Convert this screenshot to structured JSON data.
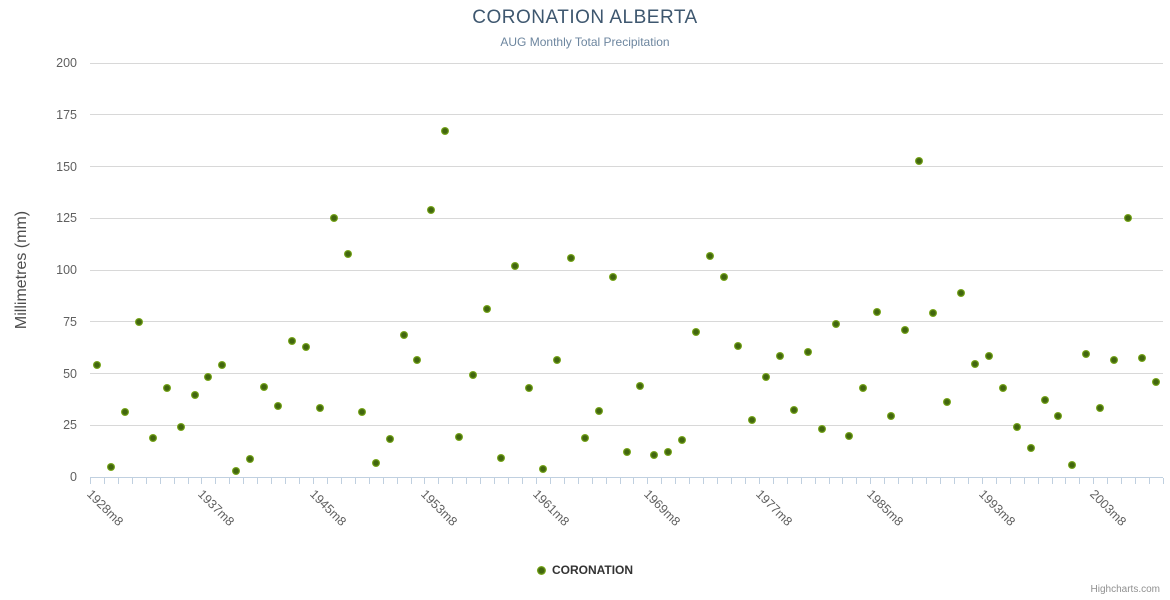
{
  "chart": {
    "title": "CORONATION ALBERTA",
    "subtitle": "AUG Monthly Total Precipitation",
    "credits": "Highcharts.com"
  },
  "legend": {
    "series_label": "CORONATION"
  },
  "colors": {
    "title": "#3E576F",
    "subtitle": "#6D869F",
    "axis_label": "#606060",
    "axis_title": "#4D4D4D",
    "grid": "#D8D8D8",
    "axis_line": "#C0D0E0",
    "marker_rim": "#8BBC21",
    "marker_core": "#41660E",
    "legend_text": "#333333",
    "credits": "#909090"
  },
  "chart_data": {
    "type": "scatter",
    "title": "CORONATION ALBERTA",
    "subtitle": "AUG Monthly Total Precipitation",
    "xlabel": "",
    "ylabel": "Millimetres (mm)",
    "ylim": [
      0,
      200
    ],
    "y_tick_interval": 25,
    "y_tick_labels": [
      "0",
      "25",
      "50",
      "75",
      "100",
      "125",
      "150",
      "175",
      "200"
    ],
    "grid": true,
    "legend_position": "bottom-center",
    "series_name": "CORONATION",
    "point_count": 77,
    "x_tick_labels": [
      {
        "index": 0,
        "label": "1928m8"
      },
      {
        "index": 8,
        "label": "1937m8"
      },
      {
        "index": 16,
        "label": "1945m8"
      },
      {
        "index": 24,
        "label": "1953m8"
      },
      {
        "index": 32,
        "label": "1961m8"
      },
      {
        "index": 40,
        "label": "1969m8"
      },
      {
        "index": 48,
        "label": "1977m8"
      },
      {
        "index": 56,
        "label": "1985m8"
      },
      {
        "index": 64,
        "label": "1993m8"
      },
      {
        "index": 72,
        "label": "2003m8"
      }
    ],
    "values": [
      54,
      5,
      31.5,
      75,
      19,
      43,
      24,
      39.5,
      48.5,
      54,
      3,
      8.5,
      43.5,
      34.5,
      65.5,
      63,
      33.5,
      125,
      107.5,
      31.5,
      7,
      18.5,
      68.5,
      56.5,
      129,
      167,
      19.5,
      49.5,
      81,
      9,
      102,
      43,
      4,
      56.5,
      106,
      19,
      32,
      96.5,
      12,
      44,
      10.5,
      12,
      18,
      70,
      107,
      96.5,
      63.5,
      27.5,
      48.5,
      58.5,
      32.5,
      60.5,
      23,
      74,
      20,
      43,
      79.5,
      29.5,
      71,
      152.5,
      79,
      36,
      89,
      54.5,
      58.5,
      43,
      24,
      14,
      37,
      29.5,
      6,
      59.5,
      33.5,
      56.5,
      125,
      57.5,
      46
    ]
  }
}
